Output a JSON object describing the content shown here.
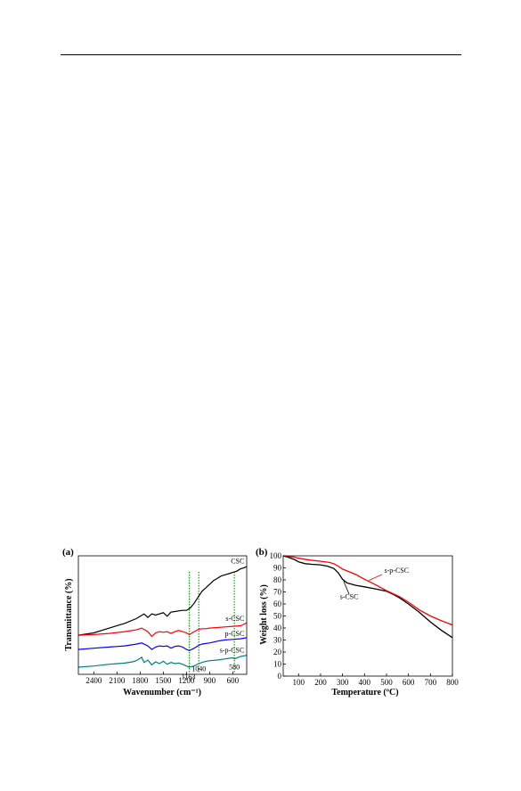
{
  "chart_data": [
    {
      "type": "line",
      "panel_label": "(a)",
      "xlabel": "Wavenumber (cm⁻¹)",
      "ylabel": "Transmittance (%)",
      "x_reversed": true,
      "xlim": [
        2600,
        420
      ],
      "ylim": [
        0,
        10
      ],
      "y_ticks_shown": false,
      "xticks": [
        2400,
        2100,
        1800,
        1500,
        1200,
        900,
        600
      ],
      "grid": false,
      "series": [
        {
          "name": "CSC",
          "color": "#000000",
          "x": [
            2600,
            2400,
            2200,
            2000,
            1850,
            1750,
            1700,
            1650,
            1600,
            1500,
            1450,
            1400,
            1350,
            1300,
            1250,
            1200,
            1150,
            1100,
            1040,
            1000,
            950,
            900,
            850,
            800,
            750,
            700,
            650,
            600,
            550,
            500,
            450,
            420
          ],
          "y": [
            3.3,
            3.5,
            3.9,
            4.3,
            4.7,
            5.1,
            4.8,
            5.1,
            5.0,
            5.2,
            4.9,
            5.25,
            5.3,
            5.35,
            5.4,
            5.4,
            5.6,
            6.0,
            6.6,
            7.0,
            7.3,
            7.6,
            7.9,
            8.1,
            8.3,
            8.4,
            8.5,
            8.6,
            8.7,
            8.9,
            9.0,
            9.1
          ]
        },
        {
          "name": "s-CSC",
          "color": "#ff0000",
          "x": [
            2600,
            2400,
            2200,
            2000,
            1850,
            1780,
            1700,
            1650,
            1600,
            1550,
            1500,
            1450,
            1400,
            1350,
            1300,
            1250,
            1200,
            1163,
            1100,
            1040,
            1000,
            950,
            900,
            800,
            700,
            600,
            500,
            450,
            420
          ],
          "y": [
            3.3,
            3.35,
            3.45,
            3.6,
            3.75,
            3.9,
            3.6,
            3.2,
            3.5,
            3.6,
            3.55,
            3.6,
            3.45,
            3.6,
            3.7,
            3.6,
            3.5,
            3.35,
            3.6,
            3.8,
            3.85,
            3.85,
            3.9,
            3.95,
            4.0,
            4.05,
            4.1,
            4.25,
            4.35
          ]
        },
        {
          "name": "p-CSC",
          "color": "#0000ff",
          "x": [
            2600,
            2400,
            2200,
            2000,
            1850,
            1780,
            1700,
            1650,
            1600,
            1550,
            1500,
            1450,
            1400,
            1350,
            1300,
            1250,
            1200,
            1163,
            1100,
            1040,
            1000,
            950,
            900,
            800,
            700,
            600,
            500,
            450,
            420
          ],
          "y": [
            2.1,
            2.2,
            2.3,
            2.4,
            2.55,
            2.65,
            2.4,
            2.1,
            2.3,
            2.4,
            2.35,
            2.4,
            2.2,
            2.35,
            2.4,
            2.3,
            2.1,
            2.0,
            2.2,
            2.45,
            2.55,
            2.6,
            2.65,
            2.8,
            2.9,
            2.95,
            3.0,
            3.05,
            3.1
          ]
        },
        {
          "name": "s-p-CSC",
          "color": "#008080",
          "x": [
            2600,
            2400,
            2200,
            2000,
            1900,
            1850,
            1800,
            1780,
            1750,
            1700,
            1650,
            1600,
            1550,
            1500,
            1450,
            1400,
            1350,
            1300,
            1250,
            1200,
            1163,
            1100,
            1040,
            1000,
            950,
            900,
            800,
            700,
            600,
            580,
            500,
            420
          ],
          "y": [
            0.6,
            0.7,
            0.85,
            0.95,
            1.05,
            1.15,
            1.35,
            1.45,
            1.0,
            1.2,
            0.8,
            1.05,
            0.9,
            1.1,
            0.85,
            1.0,
            0.9,
            0.95,
            0.85,
            0.7,
            0.6,
            0.7,
            0.9,
            1.0,
            1.1,
            1.15,
            1.2,
            1.3,
            1.4,
            1.3,
            1.5,
            1.6
          ]
        }
      ],
      "annotations": [
        {
          "text": "CSC",
          "x": 520,
          "y": 9.35
        },
        {
          "text": "s-CSC",
          "x": 520,
          "y": 4.5
        },
        {
          "text": "p-CSC",
          "x": 520,
          "y": 3.25
        },
        {
          "text": "s-p-CSC",
          "x": 520,
          "y": 1.85
        },
        {
          "text": "1163",
          "x": 1175,
          "y": -0.4
        },
        {
          "text": "1040",
          "x": 1040,
          "y": 0.25
        },
        {
          "text": "580",
          "x": 580,
          "y": 0.4
        }
      ],
      "reference_lines": [
        {
          "x": 1163,
          "color": "#00b000",
          "style": "dotted"
        },
        {
          "x": 1040,
          "color": "#00b000",
          "style": "dotted"
        },
        {
          "x": 580,
          "color": "#00b000",
          "style": "dotted"
        }
      ]
    },
    {
      "type": "line",
      "panel_label": "(b)",
      "xlabel": "Temperature (ºC)",
      "ylabel": "Weight loss (%)",
      "xlim": [
        30,
        800
      ],
      "ylim": [
        0,
        100
      ],
      "xticks": [
        100,
        200,
        300,
        400,
        500,
        600,
        700,
        800
      ],
      "yticks": [
        0,
        10,
        20,
        30,
        40,
        50,
        60,
        70,
        80,
        90,
        100
      ],
      "grid": false,
      "series": [
        {
          "name": "s-CSC",
          "color": "#000000",
          "x": [
            30,
            50,
            80,
            100,
            130,
            160,
            200,
            230,
            260,
            280,
            300,
            320,
            340,
            360,
            400,
            450,
            500,
            530,
            560,
            600,
            650,
            700,
            750,
            800
          ],
          "y": [
            100,
            99,
            97,
            95,
            93.5,
            93,
            92.5,
            91.5,
            89.5,
            86,
            80.5,
            77.5,
            76.5,
            75.5,
            74.2,
            72.5,
            70.5,
            68,
            65,
            60,
            53,
            45,
            38,
            32
          ]
        },
        {
          "name": "s-p-CSC",
          "color": "#ff0000",
          "x": [
            30,
            50,
            80,
            100,
            150,
            200,
            240,
            260,
            280,
            300,
            320,
            340,
            360,
            400,
            450,
            500,
            530,
            560,
            600,
            650,
            700,
            750,
            800
          ],
          "y": [
            100,
            99.5,
            99,
            98,
            96.5,
            95.5,
            94.5,
            93.5,
            91.5,
            89,
            87.5,
            86,
            84.5,
            80.5,
            76,
            71,
            68.5,
            66,
            61.5,
            55,
            50,
            46,
            42.5
          ]
        }
      ],
      "annotations": [
        {
          "text": "s-p-CSC",
          "x": 490,
          "y": 86
        },
        {
          "text": "s-CSC",
          "x": 330,
          "y": 64
        }
      ]
    }
  ]
}
